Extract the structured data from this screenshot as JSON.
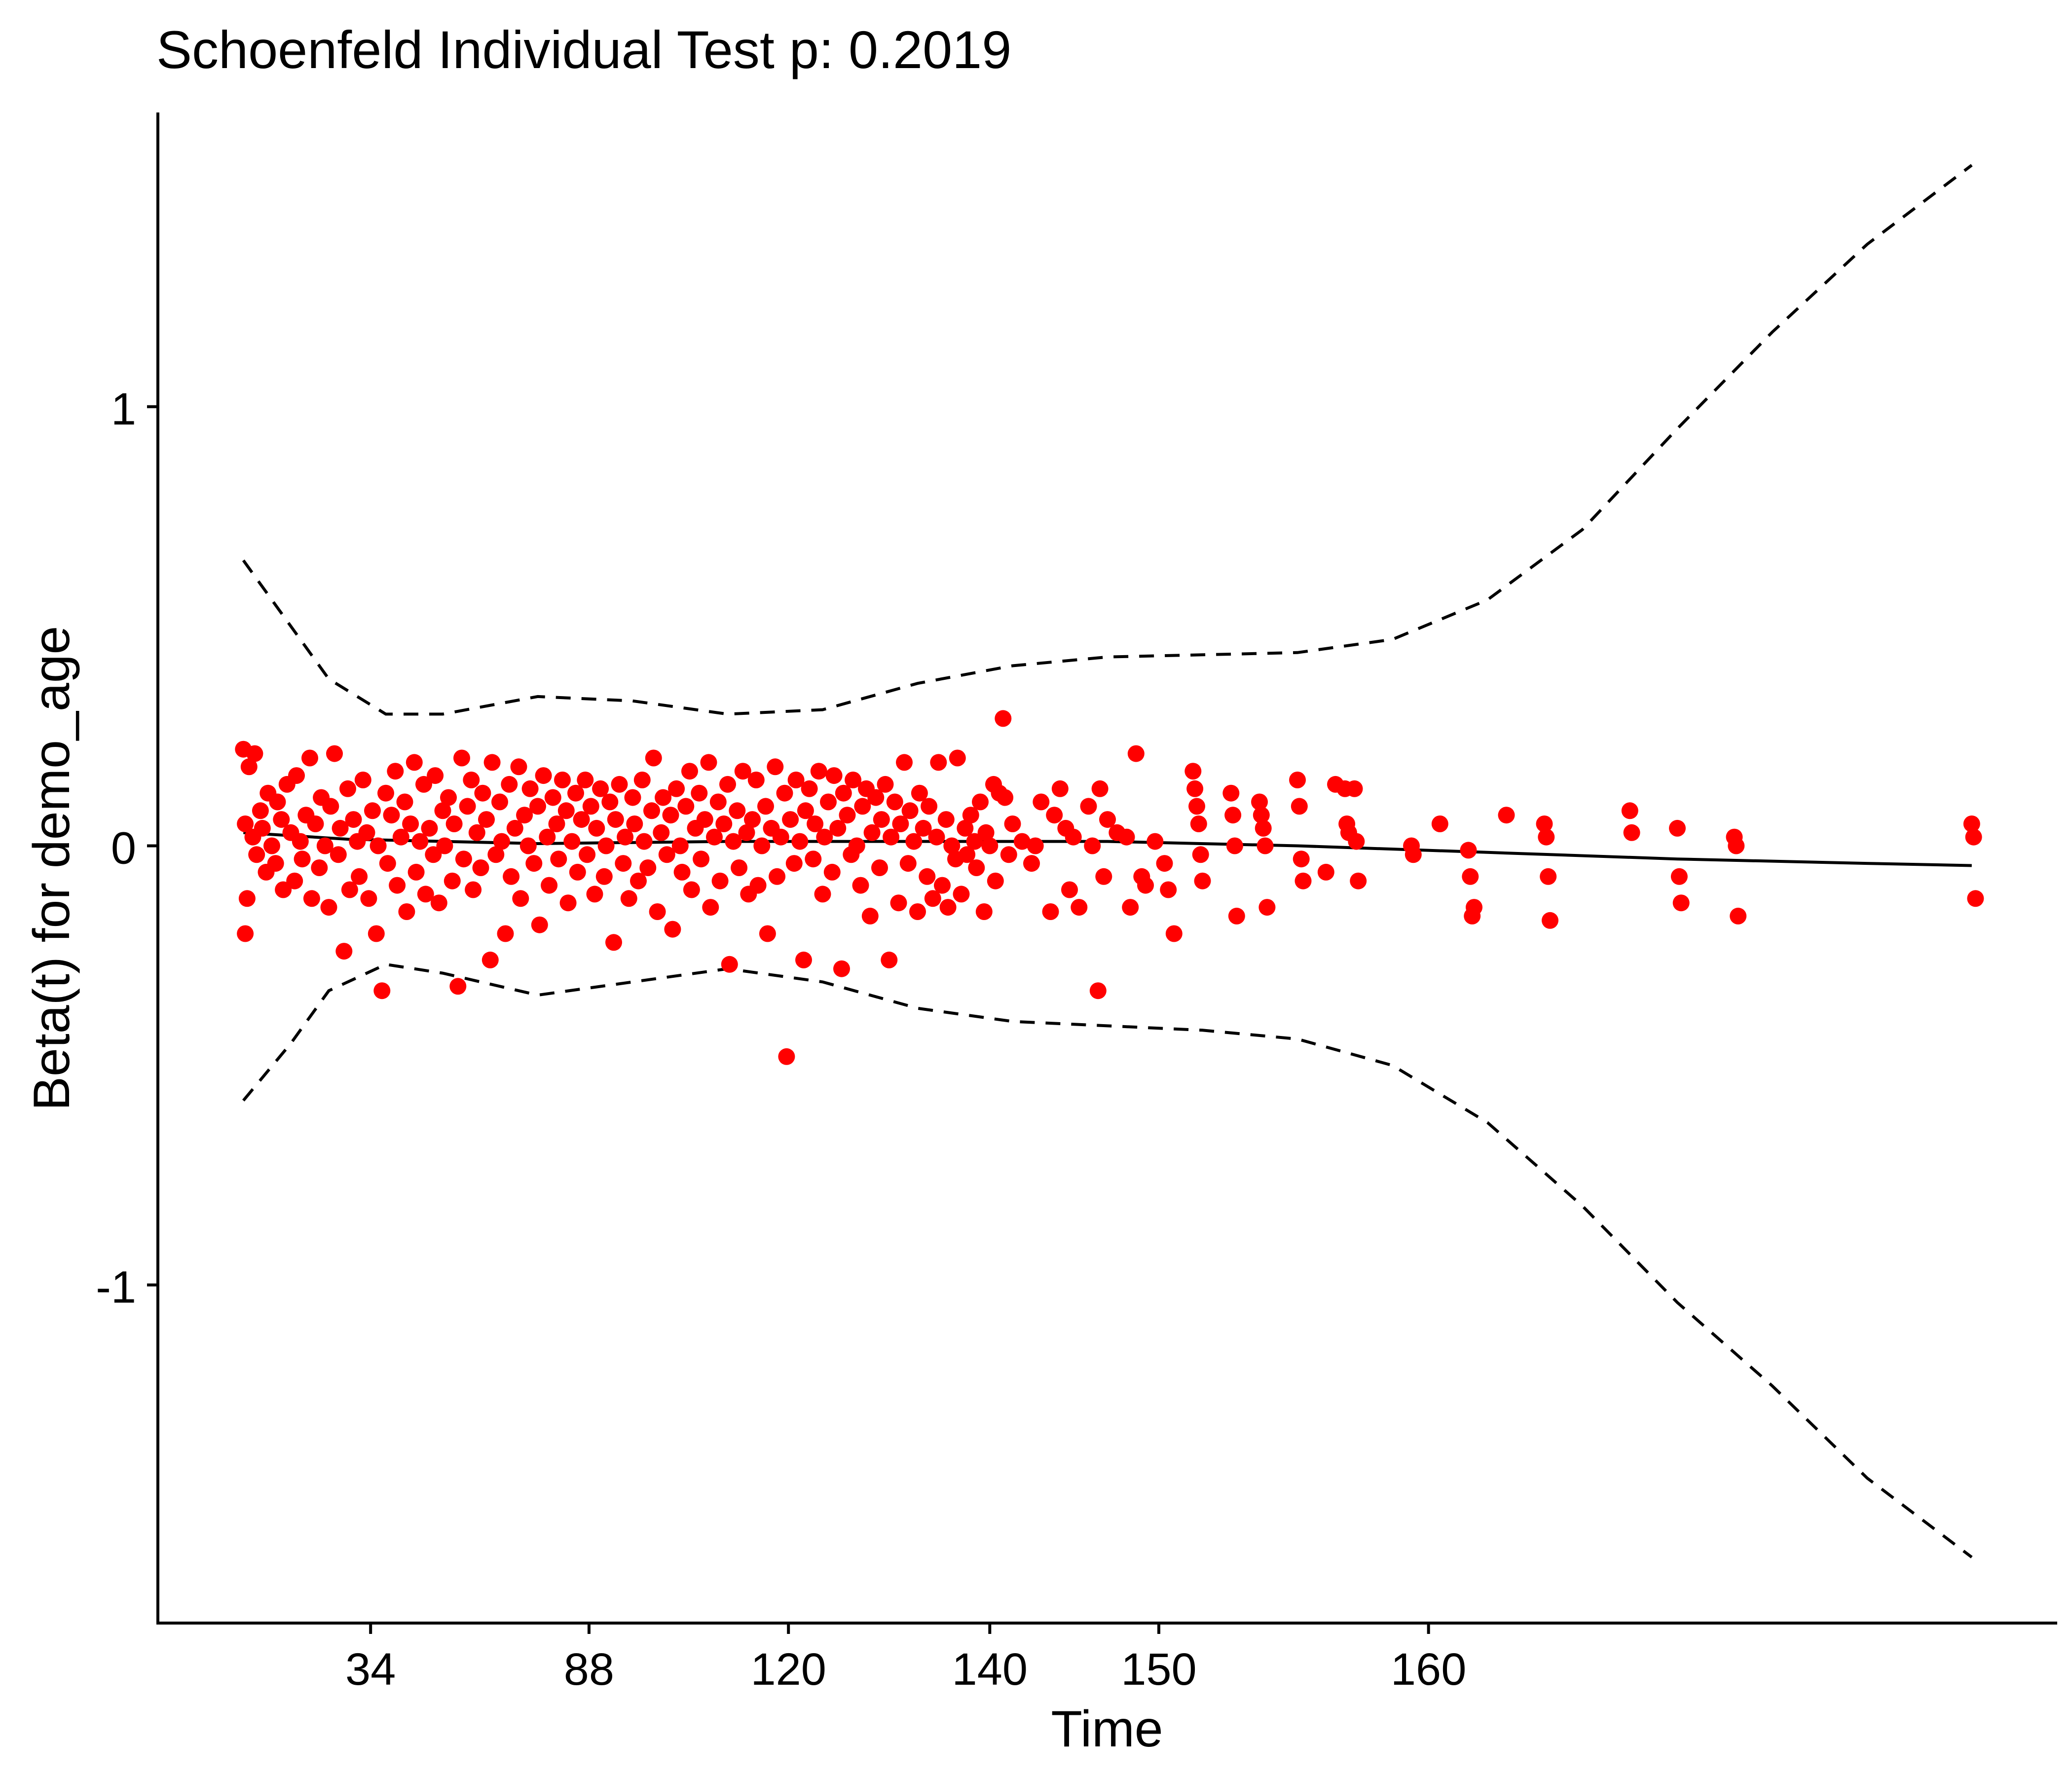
{
  "chart_data": {
    "type": "scatter",
    "title": "Schoenfeld Individual Test p: 0.2019",
    "xlabel": "Time",
    "ylabel": "Beta(t) for demo_age",
    "x_tick_labels": [
      "34",
      "88",
      "120",
      "140",
      "150",
      "160"
    ],
    "y_tick_labels": [
      "-1",
      "0",
      "1"
    ],
    "y_ticks": [
      -1,
      0,
      1
    ],
    "ylim": [
      -1.77,
      1.67
    ],
    "x_axis_note": "x axis is a transformed (rank-like) time scale; x values below are in that scale, with printed labels 34 at 0.112, 88 at 0.227, 120 at 0.332, 140 at 0.438, 150 at 0.527, 160 at 0.669",
    "xlim": [
      0,
      1
    ],
    "grid": false,
    "colors": {
      "points": "#ff0000",
      "lines": "#000000"
    },
    "series": [
      {
        "type": "line",
        "style": "solid",
        "x": [
          0.045,
          0.1,
          0.2,
          0.3,
          0.4,
          0.5,
          0.6,
          0.7,
          0.8,
          0.9,
          0.955
        ],
        "y": [
          0.03,
          0.015,
          0.005,
          0.01,
          0.01,
          0.01,
          0.0,
          -0.015,
          -0.03,
          -0.04,
          -0.045
        ]
      },
      {
        "type": "line",
        "style": "dashed",
        "x": [
          0.045,
          0.07,
          0.09,
          0.12,
          0.15,
          0.2,
          0.25,
          0.3,
          0.35,
          0.4,
          0.45,
          0.5,
          0.55,
          0.6,
          0.65,
          0.7,
          0.75,
          0.8,
          0.85,
          0.9,
          0.955
        ],
        "y": [
          0.65,
          0.5,
          0.38,
          0.3,
          0.3,
          0.34,
          0.33,
          0.3,
          0.31,
          0.37,
          0.41,
          0.43,
          0.435,
          0.44,
          0.47,
          0.56,
          0.72,
          0.95,
          1.17,
          1.37,
          1.55
        ]
      },
      {
        "type": "line",
        "style": "dashed",
        "x": [
          0.045,
          0.07,
          0.09,
          0.12,
          0.15,
          0.2,
          0.25,
          0.3,
          0.35,
          0.4,
          0.45,
          0.5,
          0.55,
          0.6,
          0.65,
          0.7,
          0.75,
          0.8,
          0.85,
          0.9,
          0.955
        ],
        "y": [
          -0.58,
          -0.45,
          -0.33,
          -0.27,
          -0.29,
          -0.34,
          -0.31,
          -0.28,
          -0.31,
          -0.37,
          -0.4,
          -0.41,
          -0.42,
          -0.44,
          -0.5,
          -0.63,
          -0.82,
          -1.04,
          -1.23,
          -1.44,
          -1.62
        ]
      }
    ],
    "points": [
      [
        0.045,
        0.22
      ],
      [
        0.046,
        0.05
      ],
      [
        0.046,
        -0.2
      ],
      [
        0.047,
        -0.12
      ],
      [
        0.048,
        0.18
      ],
      [
        0.05,
        0.02
      ],
      [
        0.051,
        0.21
      ],
      [
        0.052,
        -0.02
      ],
      [
        0.054,
        0.08
      ],
      [
        0.055,
        0.04
      ],
      [
        0.057,
        -0.06
      ],
      [
        0.058,
        0.12
      ],
      [
        0.06,
        0.0
      ],
      [
        0.062,
        -0.04
      ],
      [
        0.063,
        0.1
      ],
      [
        0.065,
        0.06
      ],
      [
        0.066,
        -0.1
      ],
      [
        0.068,
        0.14
      ],
      [
        0.07,
        0.03
      ],
      [
        0.072,
        -0.08
      ],
      [
        0.073,
        0.16
      ],
      [
        0.075,
        0.01
      ],
      [
        0.076,
        -0.03
      ],
      [
        0.078,
        0.07
      ],
      [
        0.08,
        0.2
      ],
      [
        0.081,
        -0.12
      ],
      [
        0.083,
        0.05
      ],
      [
        0.085,
        -0.05
      ],
      [
        0.086,
        0.11
      ],
      [
        0.088,
        0.0
      ],
      [
        0.09,
        -0.14
      ],
      [
        0.091,
        0.09
      ],
      [
        0.093,
        0.21
      ],
      [
        0.095,
        -0.02
      ],
      [
        0.096,
        0.04
      ],
      [
        0.098,
        -0.24
      ],
      [
        0.1,
        0.13
      ],
      [
        0.101,
        -0.1
      ],
      [
        0.103,
        0.06
      ],
      [
        0.105,
        0.01
      ],
      [
        0.106,
        -0.07
      ],
      [
        0.108,
        0.15
      ],
      [
        0.11,
        0.03
      ],
      [
        0.111,
        -0.12
      ],
      [
        0.113,
        0.08
      ],
      [
        0.115,
        -0.2
      ],
      [
        0.116,
        0.0
      ],
      [
        0.118,
        -0.33
      ],
      [
        0.12,
        0.12
      ],
      [
        0.121,
        -0.04
      ],
      [
        0.123,
        0.07
      ],
      [
        0.125,
        0.17
      ],
      [
        0.126,
        -0.09
      ],
      [
        0.128,
        0.02
      ],
      [
        0.13,
        0.1
      ],
      [
        0.131,
        -0.15
      ],
      [
        0.133,
        0.05
      ],
      [
        0.135,
        0.19
      ],
      [
        0.136,
        -0.06
      ],
      [
        0.138,
        0.01
      ],
      [
        0.14,
        0.14
      ],
      [
        0.141,
        -0.11
      ],
      [
        0.143,
        0.04
      ],
      [
        0.145,
        -0.02
      ],
      [
        0.146,
        0.16
      ],
      [
        0.148,
        -0.13
      ],
      [
        0.15,
        0.08
      ],
      [
        0.151,
        0.0
      ],
      [
        0.153,
        0.11
      ],
      [
        0.155,
        -0.08
      ],
      [
        0.156,
        0.05
      ],
      [
        0.158,
        -0.32
      ],
      [
        0.16,
        0.2
      ],
      [
        0.161,
        -0.03
      ],
      [
        0.163,
        0.09
      ],
      [
        0.165,
        0.15
      ],
      [
        0.166,
        -0.1
      ],
      [
        0.168,
        0.03
      ],
      [
        0.17,
        -0.05
      ],
      [
        0.171,
        0.12
      ],
      [
        0.173,
        0.06
      ],
      [
        0.175,
        -0.26
      ],
      [
        0.176,
        0.19
      ],
      [
        0.178,
        -0.02
      ],
      [
        0.18,
        0.1
      ],
      [
        0.181,
        0.01
      ],
      [
        0.183,
        -0.2
      ],
      [
        0.185,
        0.14
      ],
      [
        0.186,
        -0.07
      ],
      [
        0.188,
        0.04
      ],
      [
        0.19,
        0.18
      ],
      [
        0.191,
        -0.12
      ],
      [
        0.193,
        0.07
      ],
      [
        0.195,
        0.0
      ],
      [
        0.196,
        0.13
      ],
      [
        0.198,
        -0.04
      ],
      [
        0.2,
        0.09
      ],
      [
        0.201,
        -0.18
      ],
      [
        0.203,
        0.16
      ],
      [
        0.205,
        0.02
      ],
      [
        0.206,
        -0.09
      ],
      [
        0.208,
        0.11
      ],
      [
        0.21,
        0.05
      ],
      [
        0.211,
        -0.03
      ],
      [
        0.213,
        0.15
      ],
      [
        0.215,
        0.08
      ],
      [
        0.216,
        -0.13
      ],
      [
        0.218,
        0.01
      ],
      [
        0.22,
        0.12
      ],
      [
        0.221,
        -0.06
      ],
      [
        0.223,
        0.06
      ],
      [
        0.225,
        0.15
      ],
      [
        0.226,
        -0.02
      ],
      [
        0.228,
        0.09
      ],
      [
        0.23,
        -0.11
      ],
      [
        0.231,
        0.04
      ],
      [
        0.233,
        0.13
      ],
      [
        0.235,
        -0.07
      ],
      [
        0.236,
        0.0
      ],
      [
        0.238,
        0.1
      ],
      [
        0.24,
        -0.22
      ],
      [
        0.241,
        0.06
      ],
      [
        0.243,
        0.14
      ],
      [
        0.245,
        -0.04
      ],
      [
        0.246,
        0.02
      ],
      [
        0.248,
        -0.12
      ],
      [
        0.25,
        0.11
      ],
      [
        0.251,
        0.05
      ],
      [
        0.253,
        -0.08
      ],
      [
        0.255,
        0.15
      ],
      [
        0.256,
        0.01
      ],
      [
        0.258,
        -0.05
      ],
      [
        0.26,
        0.08
      ],
      [
        0.261,
        0.2
      ],
      [
        0.263,
        -0.15
      ],
      [
        0.265,
        0.03
      ],
      [
        0.266,
        0.11
      ],
      [
        0.268,
        -0.02
      ],
      [
        0.27,
        0.07
      ],
      [
        0.271,
        -0.19
      ],
      [
        0.273,
        0.13
      ],
      [
        0.275,
        0.0
      ],
      [
        0.276,
        -0.06
      ],
      [
        0.278,
        0.09
      ],
      [
        0.28,
        0.17
      ],
      [
        0.281,
        -0.1
      ],
      [
        0.283,
        0.04
      ],
      [
        0.285,
        0.12
      ],
      [
        0.286,
        -0.03
      ],
      [
        0.288,
        0.06
      ],
      [
        0.29,
        0.19
      ],
      [
        0.291,
        -0.14
      ],
      [
        0.293,
        0.02
      ],
      [
        0.295,
        0.1
      ],
      [
        0.296,
        -0.08
      ],
      [
        0.298,
        0.05
      ],
      [
        0.3,
        0.14
      ],
      [
        0.301,
        -0.27
      ],
      [
        0.303,
        0.01
      ],
      [
        0.305,
        0.08
      ],
      [
        0.306,
        -0.05
      ],
      [
        0.308,
        0.17
      ],
      [
        0.31,
        0.03
      ],
      [
        0.311,
        -0.11
      ],
      [
        0.313,
        0.06
      ],
      [
        0.315,
        0.15
      ],
      [
        0.316,
        -0.09
      ],
      [
        0.318,
        0.0
      ],
      [
        0.32,
        0.09
      ],
      [
        0.321,
        -0.2
      ],
      [
        0.323,
        0.04
      ],
      [
        0.325,
        0.18
      ],
      [
        0.326,
        -0.07
      ],
      [
        0.328,
        0.02
      ],
      [
        0.33,
        0.12
      ],
      [
        0.331,
        -0.48
      ],
      [
        0.333,
        0.06
      ],
      [
        0.335,
        -0.04
      ],
      [
        0.336,
        0.15
      ],
      [
        0.338,
        0.01
      ],
      [
        0.34,
        -0.26
      ],
      [
        0.341,
        0.08
      ],
      [
        0.343,
        0.13
      ],
      [
        0.345,
        -0.03
      ],
      [
        0.346,
        0.05
      ],
      [
        0.348,
        0.17
      ],
      [
        0.35,
        -0.11
      ],
      [
        0.351,
        0.02
      ],
      [
        0.353,
        0.1
      ],
      [
        0.355,
        -0.06
      ],
      [
        0.356,
        0.16
      ],
      [
        0.358,
        0.04
      ],
      [
        0.36,
        -0.28
      ],
      [
        0.361,
        0.12
      ],
      [
        0.363,
        0.07
      ],
      [
        0.365,
        -0.02
      ],
      [
        0.366,
        0.15
      ],
      [
        0.368,
        0.0
      ],
      [
        0.37,
        -0.09
      ],
      [
        0.371,
        0.09
      ],
      [
        0.373,
        0.13
      ],
      [
        0.375,
        -0.16
      ],
      [
        0.376,
        0.03
      ],
      [
        0.378,
        0.11
      ],
      [
        0.38,
        -0.05
      ],
      [
        0.381,
        0.06
      ],
      [
        0.383,
        0.14
      ],
      [
        0.385,
        -0.26
      ],
      [
        0.386,
        0.02
      ],
      [
        0.388,
        0.1
      ],
      [
        0.39,
        -0.13
      ],
      [
        0.391,
        0.05
      ],
      [
        0.393,
        0.19
      ],
      [
        0.395,
        -0.04
      ],
      [
        0.396,
        0.08
      ],
      [
        0.398,
        0.01
      ],
      [
        0.4,
        -0.15
      ],
      [
        0.401,
        0.12
      ],
      [
        0.403,
        0.04
      ],
      [
        0.405,
        -0.07
      ],
      [
        0.406,
        0.09
      ],
      [
        0.408,
        -0.12
      ],
      [
        0.41,
        0.02
      ],
      [
        0.411,
        0.19
      ],
      [
        0.413,
        -0.09
      ],
      [
        0.415,
        0.06
      ],
      [
        0.416,
        -0.14
      ],
      [
        0.418,
        0.0
      ],
      [
        0.42,
        -0.03
      ],
      [
        0.421,
        0.2
      ],
      [
        0.423,
        -0.11
      ],
      [
        0.425,
        0.04
      ],
      [
        0.426,
        -0.02
      ],
      [
        0.428,
        0.07
      ],
      [
        0.43,
        0.01
      ],
      [
        0.431,
        -0.05
      ],
      [
        0.433,
        0.1
      ],
      [
        0.435,
        -0.15
      ],
      [
        0.436,
        0.03
      ],
      [
        0.438,
        0.0
      ],
      [
        0.44,
        0.14
      ],
      [
        0.441,
        -0.08
      ],
      [
        0.443,
        0.12
      ],
      [
        0.445,
        0.29
      ],
      [
        0.446,
        0.11
      ],
      [
        0.448,
        -0.02
      ],
      [
        0.45,
        0.05
      ],
      [
        0.455,
        0.01
      ],
      [
        0.46,
        -0.04
      ],
      [
        0.462,
        0.0
      ],
      [
        0.465,
        0.1
      ],
      [
        0.47,
        -0.15
      ],
      [
        0.472,
        0.07
      ],
      [
        0.475,
        0.13
      ],
      [
        0.478,
        0.04
      ],
      [
        0.48,
        -0.1
      ],
      [
        0.482,
        0.02
      ],
      [
        0.485,
        -0.14
      ],
      [
        0.49,
        0.09
      ],
      [
        0.492,
        0.0
      ],
      [
        0.495,
        -0.33
      ],
      [
        0.496,
        0.13
      ],
      [
        0.498,
        -0.07
      ],
      [
        0.5,
        0.06
      ],
      [
        0.505,
        0.03
      ],
      [
        0.51,
        0.02
      ],
      [
        0.512,
        -0.14
      ],
      [
        0.515,
        0.21
      ],
      [
        0.518,
        -0.07
      ],
      [
        0.52,
        -0.09
      ],
      [
        0.525,
        0.01
      ],
      [
        0.53,
        -0.04
      ],
      [
        0.532,
        -0.1
      ],
      [
        0.535,
        -0.2
      ],
      [
        0.545,
        0.17
      ],
      [
        0.546,
        0.13
      ],
      [
        0.547,
        0.09
      ],
      [
        0.548,
        0.05
      ],
      [
        0.549,
        -0.02
      ],
      [
        0.55,
        -0.08
      ],
      [
        0.565,
        0.12
      ],
      [
        0.566,
        0.07
      ],
      [
        0.567,
        0.0
      ],
      [
        0.568,
        -0.16
      ],
      [
        0.58,
        0.1
      ],
      [
        0.581,
        0.07
      ],
      [
        0.582,
        0.04
      ],
      [
        0.583,
        0.0
      ],
      [
        0.584,
        -0.14
      ],
      [
        0.6,
        0.15
      ],
      [
        0.601,
        0.09
      ],
      [
        0.602,
        -0.03
      ],
      [
        0.603,
        -0.08
      ],
      [
        0.615,
        -0.06
      ],
      [
        0.62,
        0.14
      ],
      [
        0.625,
        0.13
      ],
      [
        0.626,
        0.05
      ],
      [
        0.627,
        0.03
      ],
      [
        0.63,
        0.13
      ],
      [
        0.631,
        0.01
      ],
      [
        0.632,
        -0.08
      ],
      [
        0.66,
        0.0
      ],
      [
        0.661,
        -0.02
      ],
      [
        0.675,
        0.05
      ],
      [
        0.69,
        -0.01
      ],
      [
        0.691,
        -0.07
      ],
      [
        0.692,
        -0.16
      ],
      [
        0.693,
        -0.14
      ],
      [
        0.71,
        0.07
      ],
      [
        0.73,
        0.05
      ],
      [
        0.731,
        0.02
      ],
      [
        0.732,
        -0.07
      ],
      [
        0.733,
        -0.17
      ],
      [
        0.775,
        0.08
      ],
      [
        0.776,
        0.03
      ],
      [
        0.8,
        0.04
      ],
      [
        0.801,
        -0.07
      ],
      [
        0.802,
        -0.13
      ],
      [
        0.83,
        0.02
      ],
      [
        0.831,
        0.0
      ],
      [
        0.832,
        -0.16
      ],
      [
        0.955,
        0.05
      ],
      [
        0.956,
        0.02
      ],
      [
        0.957,
        -0.12
      ]
    ]
  }
}
